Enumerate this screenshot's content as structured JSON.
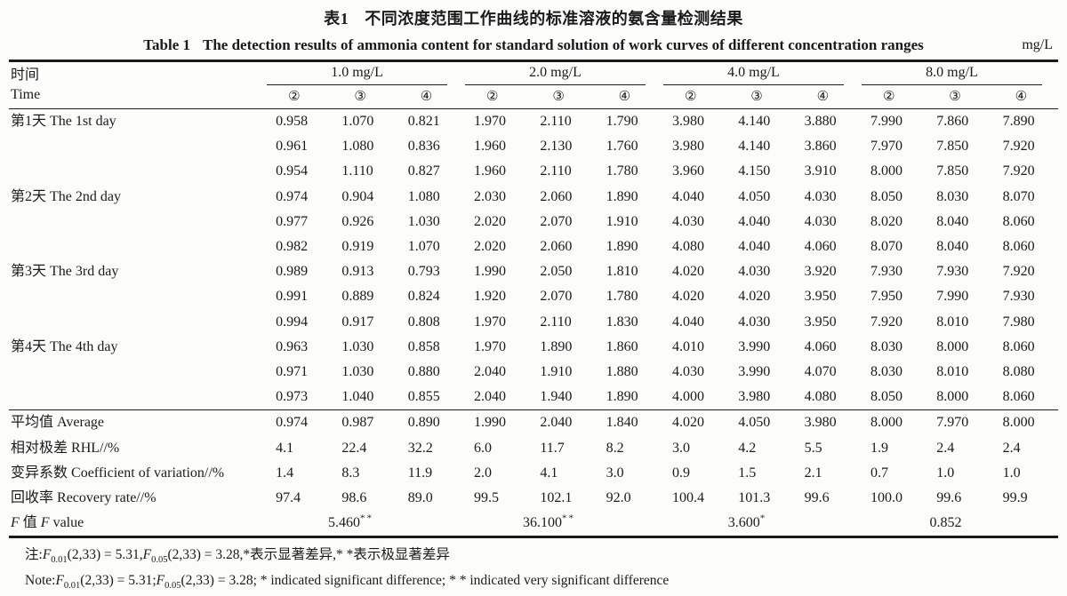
{
  "title": {
    "zh_prefix": "表1",
    "zh": "不同浓度范围工作曲线的标准溶液的氨含量检测结果",
    "en_prefix": "Table 1",
    "en": "The detection results of ammonia content for standard solution of work curves of different concentration ranges",
    "unit": "mg/L"
  },
  "table": {
    "time_header": {
      "zh": "时间",
      "en": "Time"
    },
    "groups": [
      {
        "label": "1.0 mg/L",
        "subcols": [
          "②",
          "③",
          "④"
        ]
      },
      {
        "label": "2.0 mg/L",
        "subcols": [
          "②",
          "③",
          "④"
        ]
      },
      {
        "label": "4.0 mg/L",
        "subcols": [
          "②",
          "③",
          "④"
        ]
      },
      {
        "label": "8.0 mg/L",
        "subcols": [
          "②",
          "③",
          "④"
        ]
      }
    ],
    "day_rows": [
      {
        "label_zh": "第1天",
        "label_en": "The 1st day",
        "values": [
          [
            "0.958",
            "1.070",
            "0.821",
            "1.970",
            "2.110",
            "1.790",
            "3.980",
            "4.140",
            "3.880",
            "7.990",
            "7.860",
            "7.890"
          ],
          [
            "0.961",
            "1.080",
            "0.836",
            "1.960",
            "2.130",
            "1.760",
            "3.980",
            "4.140",
            "3.860",
            "7.970",
            "7.850",
            "7.920"
          ],
          [
            "0.954",
            "1.110",
            "0.827",
            "1.960",
            "2.110",
            "1.780",
            "3.960",
            "4.150",
            "3.910",
            "8.000",
            "7.850",
            "7.920"
          ]
        ]
      },
      {
        "label_zh": "第2天",
        "label_en": "The 2nd day",
        "values": [
          [
            "0.974",
            "0.904",
            "1.080",
            "2.030",
            "2.060",
            "1.890",
            "4.040",
            "4.050",
            "4.030",
            "8.050",
            "8.030",
            "8.070"
          ],
          [
            "0.977",
            "0.926",
            "1.030",
            "2.020",
            "2.070",
            "1.910",
            "4.030",
            "4.040",
            "4.030",
            "8.020",
            "8.040",
            "8.060"
          ],
          [
            "0.982",
            "0.919",
            "1.070",
            "2.020",
            "2.060",
            "1.890",
            "4.080",
            "4.040",
            "4.060",
            "8.070",
            "8.040",
            "8.060"
          ]
        ]
      },
      {
        "label_zh": "第3天",
        "label_en": "The 3rd day",
        "values": [
          [
            "0.989",
            "0.913",
            "0.793",
            "1.990",
            "2.050",
            "1.810",
            "4.020",
            "4.030",
            "3.920",
            "7.930",
            "7.930",
            "7.920"
          ],
          [
            "0.991",
            "0.889",
            "0.824",
            "1.920",
            "2.070",
            "1.780",
            "4.020",
            "4.020",
            "3.950",
            "7.950",
            "7.990",
            "7.930"
          ],
          [
            "0.994",
            "0.917",
            "0.808",
            "1.970",
            "2.110",
            "1.830",
            "4.040",
            "4.030",
            "3.950",
            "7.920",
            "8.010",
            "7.980"
          ]
        ]
      },
      {
        "label_zh": "第4天",
        "label_en": "The 4th day",
        "values": [
          [
            "0.963",
            "1.030",
            "0.858",
            "1.970",
            "1.890",
            "1.860",
            "4.010",
            "3.990",
            "4.060",
            "8.030",
            "8.000",
            "8.060"
          ],
          [
            "0.971",
            "1.030",
            "0.880",
            "2.040",
            "1.910",
            "1.880",
            "4.030",
            "3.990",
            "4.070",
            "8.030",
            "8.010",
            "8.080"
          ],
          [
            "0.973",
            "1.040",
            "0.855",
            "2.040",
            "1.940",
            "1.890",
            "4.000",
            "3.980",
            "4.080",
            "8.050",
            "8.000",
            "8.060"
          ]
        ]
      }
    ],
    "summary_rows": [
      {
        "label_zh": "平均值",
        "label_en": "Average",
        "values": [
          "0.974",
          "0.987",
          "0.890",
          "1.990",
          "2.040",
          "1.840",
          "4.020",
          "4.050",
          "3.980",
          "8.000",
          "7.970",
          "8.000"
        ]
      },
      {
        "label_zh": "相对极差",
        "label_en": "RHL//%",
        "values": [
          "4.1",
          "22.4",
          "32.2",
          "6.0",
          "11.7",
          "8.2",
          "3.0",
          "4.2",
          "5.5",
          "1.9",
          "2.4",
          "2.4"
        ]
      },
      {
        "label_zh": "变异系数",
        "label_en": "Coefficient of variation//%",
        "values": [
          "1.4",
          "8.3",
          "11.9",
          "2.0",
          "4.1",
          "3.0",
          "0.9",
          "1.5",
          "2.1",
          "0.7",
          "1.0",
          "1.0"
        ]
      },
      {
        "label_zh": "回收率",
        "label_en": "Recovery rate//%",
        "values": [
          "97.4",
          "98.6",
          "89.0",
          "99.5",
          "102.1",
          "92.0",
          "100.4",
          "101.3",
          "99.6",
          "100.0",
          "99.6",
          "99.9"
        ]
      }
    ],
    "f_row": {
      "label_f": "F",
      "label_zh": "值",
      "label_en": "value",
      "values": [
        {
          "text": "5.460",
          "stars": "**"
        },
        {
          "text": "36.100",
          "stars": "**"
        },
        {
          "text": "3.600",
          "stars": "*"
        },
        {
          "text": "0.852",
          "stars": ""
        }
      ]
    }
  },
  "notes": {
    "zh": {
      "prefix": "注:",
      "f1": "F",
      "sub1": "0.01",
      "mid1": "(2,33) = 5.31,",
      "f2": "F",
      "sub2": "0.05",
      "mid2": "(2,33) = 3.28,",
      "tail": "*表示显著差异,* *表示极显著差异"
    },
    "en": {
      "prefix": "Note:",
      "f1": "F",
      "sub1": "0.01",
      "mid1": "(2,33) = 5.31;",
      "f2": "F",
      "sub2": "0.05",
      "mid2": "(2,33) = 3.28; ",
      "tail": "* indicated significant difference; * * indicated very significant difference"
    }
  }
}
